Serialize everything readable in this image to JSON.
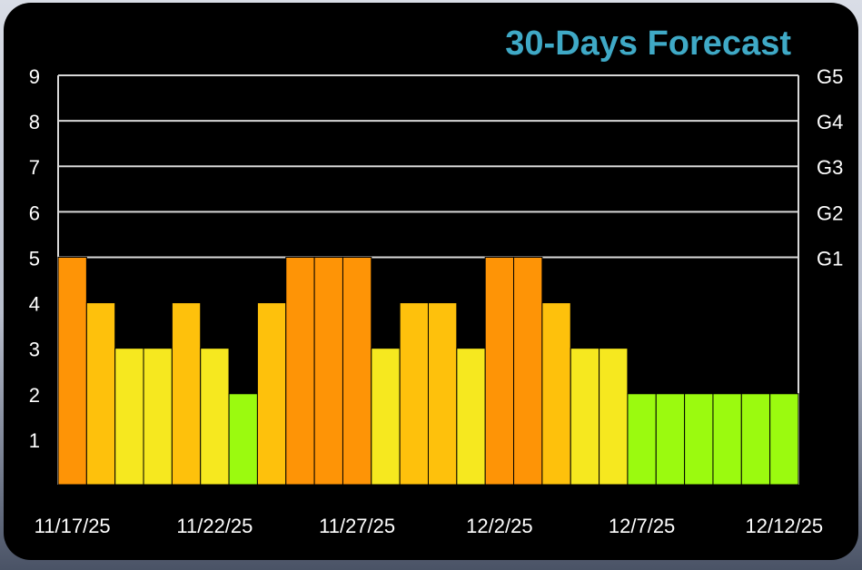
{
  "chart_data": {
    "type": "bar",
    "title": "30-Days Forecast",
    "xlabel": "",
    "ylabel": "",
    "ylim": [
      0,
      9
    ],
    "y_ticks": [
      "1",
      "2",
      "3",
      "4",
      "5",
      "6",
      "7",
      "8",
      "9"
    ],
    "right_axis_ticks": [
      {
        "at": 5,
        "label": "G1"
      },
      {
        "at": 6,
        "label": "G2"
      },
      {
        "at": 7,
        "label": "G3"
      },
      {
        "at": 8,
        "label": "G4"
      },
      {
        "at": 9,
        "label": "G5"
      }
    ],
    "x_tick_labels": [
      {
        "index": 0,
        "label": "11/17/25"
      },
      {
        "index": 5,
        "label": "11/22/25"
      },
      {
        "index": 10,
        "label": "11/27/25"
      },
      {
        "index": 15,
        "label": "12/2/25"
      },
      {
        "index": 20,
        "label": "12/7/25"
      },
      {
        "index": 25,
        "label": "12/12/25"
      }
    ],
    "categories": [
      "11/17/25",
      "11/18/25",
      "11/19/25",
      "11/20/25",
      "11/21/25",
      "11/22/25",
      "11/23/25",
      "11/24/25",
      "11/25/25",
      "11/26/25",
      "11/27/25",
      "11/28/25",
      "11/29/25",
      "11/30/25",
      "12/1/25",
      "12/2/25",
      "12/3/25",
      "12/4/25",
      "12/5/25",
      "12/6/25",
      "12/7/25",
      "12/8/25",
      "12/9/25",
      "12/10/25",
      "12/11/25",
      "12/12/25"
    ],
    "values": [
      5,
      4,
      3,
      3,
      4,
      3,
      2,
      4,
      5,
      5,
      5,
      3,
      4,
      4,
      3,
      5,
      5,
      4,
      3,
      3,
      2,
      2,
      2,
      2,
      2,
      2
    ],
    "grid": true,
    "title_color": "#3fa9c6",
    "level_colors": {
      "2": "#9bfa0f",
      "3": "#f6e81f",
      "4": "#fec10c",
      "5": "#fe9406"
    }
  }
}
